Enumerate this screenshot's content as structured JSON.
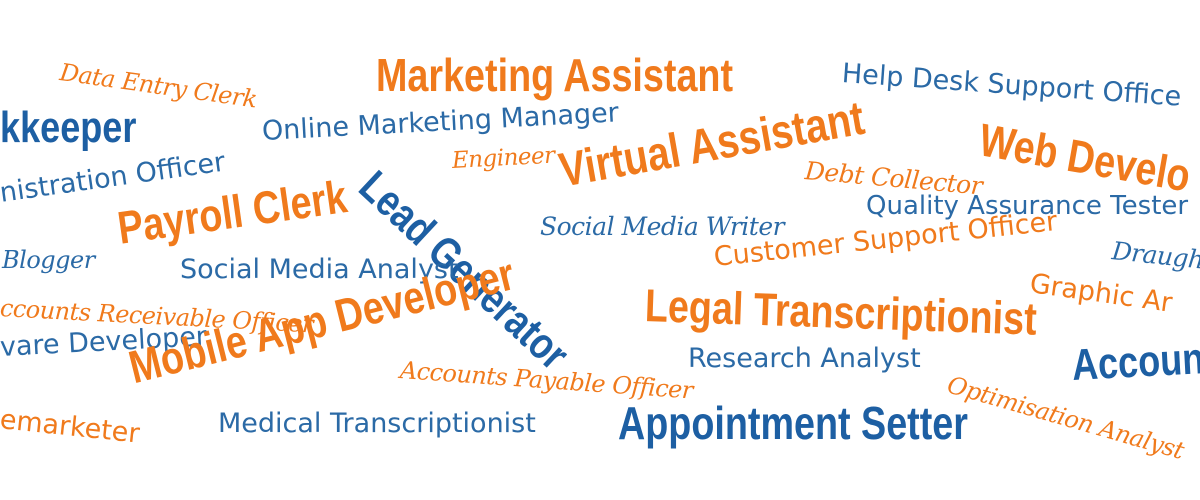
{
  "colors": {
    "orange": "#f07a1c",
    "blue": "#2b6aa6"
  },
  "words": {
    "data_entry_clerk": "Data Entry Clerk",
    "marketing_assistant": "Marketing Assistant",
    "help_desk_support_officer": "Help Desk Support Office",
    "bookkeeper": "kkeeper",
    "online_marketing_manager": "Online Marketing Manager",
    "virtual_assistant": "Virtual Assistant",
    "web_developer": "Web Develo",
    "administration_officer": "nistration Officer",
    "engineer": "Engineer",
    "debt_collector": "Debt Collector",
    "lead_generator": "Lead Generator",
    "payroll_clerk": "Payroll Clerk",
    "quality_assurance_tester": "Quality Assurance Tester",
    "social_media_writer": "Social Media Writer",
    "blogger": "Blogger",
    "customer_support_officer": "Customer Support Officer",
    "draughtsman": "Draugh",
    "social_media_analyst": "Social Media Analyst",
    "graphic_artist": "Graphic Ar",
    "accounts_receivable_officer": "ccounts Receivable Officer",
    "legal_transcriptionist": "Legal Transcriptionist",
    "software_developer": "vare Developer",
    "mobile_app_developer": "Mobile App Developer",
    "research_analyst": "Research Analyst",
    "accountant": "Account",
    "accounts_payable_officer": "Accounts Payable Officer",
    "optimisation_analyst": "Optimisation Analyst",
    "telemarketer": "emarketer",
    "medical_transcriptionist": "Medical Transcriptionist",
    "appointment_setter": "Appointment Setter"
  }
}
